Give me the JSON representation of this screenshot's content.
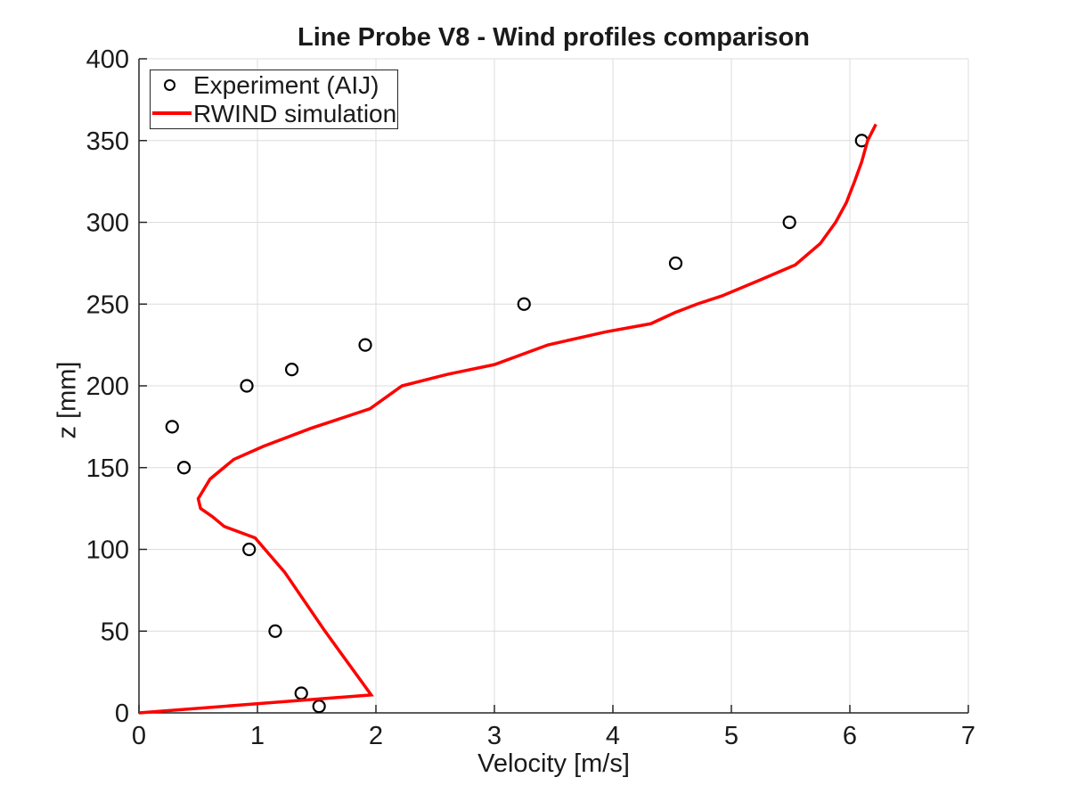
{
  "chart_data": {
    "type": "line",
    "title": "Line Probe V8 - Wind profiles comparison",
    "xlabel": "Velocity [m/s]",
    "ylabel": "z [mm]",
    "xlim": [
      0,
      7
    ],
    "ylim": [
      0,
      400
    ],
    "x_ticks": [
      0,
      1,
      2,
      3,
      4,
      5,
      6,
      7
    ],
    "y_ticks": [
      0,
      50,
      100,
      150,
      200,
      250,
      300,
      350,
      400
    ],
    "grid": true,
    "legend": {
      "position": "top-left",
      "entries": [
        "Experiment (AIJ)",
        "RWIND simulation"
      ]
    },
    "series": [
      {
        "name": "Experiment (AIJ)",
        "type": "scatter",
        "marker": "open-circle",
        "color": "#000000",
        "points_velocity_z": [
          [
            1.52,
            4
          ],
          [
            1.37,
            12
          ],
          [
            1.15,
            50
          ],
          [
            0.93,
            100
          ],
          [
            0.38,
            150
          ],
          [
            0.28,
            175
          ],
          [
            0.91,
            200
          ],
          [
            1.29,
            210
          ],
          [
            1.91,
            225
          ],
          [
            3.25,
            250
          ],
          [
            4.53,
            275
          ],
          [
            5.49,
            300
          ],
          [
            6.1,
            350
          ]
        ]
      },
      {
        "name": "RWIND simulation",
        "type": "line",
        "color": "#ff0000",
        "line_width": 3.5,
        "points_velocity_z": [
          [
            0,
            0
          ],
          [
            1.96,
            11
          ],
          [
            1.56,
            51
          ],
          [
            1.23,
            86
          ],
          [
            0.98,
            107
          ],
          [
            0.72,
            114
          ],
          [
            0.62,
            120
          ],
          [
            0.52,
            125
          ],
          [
            0.5,
            131
          ],
          [
            0.6,
            143
          ],
          [
            0.8,
            155
          ],
          [
            1.05,
            163
          ],
          [
            1.45,
            174
          ],
          [
            1.95,
            186
          ],
          [
            2.22,
            200
          ],
          [
            2.6,
            207
          ],
          [
            3.0,
            213
          ],
          [
            3.45,
            225
          ],
          [
            3.94,
            233
          ],
          [
            4.32,
            238
          ],
          [
            4.53,
            245
          ],
          [
            4.71,
            250
          ],
          [
            4.92,
            255
          ],
          [
            5.25,
            265
          ],
          [
            5.54,
            274
          ],
          [
            5.75,
            287
          ],
          [
            5.88,
            300
          ],
          [
            5.97,
            312
          ],
          [
            6.04,
            325
          ],
          [
            6.1,
            337
          ],
          [
            6.15,
            350
          ],
          [
            6.22,
            360
          ]
        ]
      }
    ],
    "colors": {
      "grid": "#dcdcdc",
      "axis": "#262626",
      "text": "#1a1a1a",
      "background": "#ffffff"
    }
  }
}
